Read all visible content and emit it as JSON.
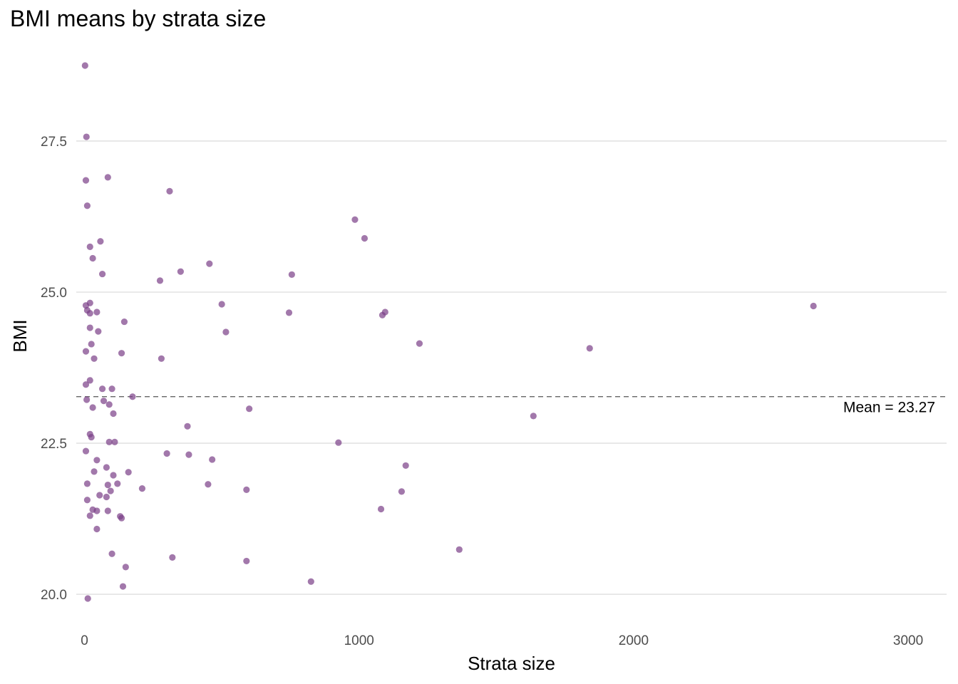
{
  "chart_data": {
    "type": "scatter",
    "title": "BMI means by strata size",
    "xlabel": "Strata size",
    "ylabel": "BMI",
    "xlim": [
      -30,
      3140
    ],
    "ylim": [
      19.6,
      28.95
    ],
    "xticks": [
      0,
      1000,
      2000,
      3000
    ],
    "xtick_labels": [
      "0",
      "1000",
      "2000",
      "3000"
    ],
    "yticks": [
      20.0,
      22.5,
      25.0,
      27.5
    ],
    "ytick_labels": [
      "20.0",
      "22.5",
      "25.0",
      "27.5"
    ],
    "grid": true,
    "point_color": "#7b3f87",
    "point_opacity": 0.7,
    "reference_line": {
      "y": 23.27,
      "style": "dashed",
      "color": "#666666",
      "label": "Mean = 23.27"
    },
    "points": [
      {
        "x": 2,
        "y": 28.75
      },
      {
        "x": 7,
        "y": 27.57
      },
      {
        "x": 5,
        "y": 26.85
      },
      {
        "x": 85,
        "y": 26.9
      },
      {
        "x": 310,
        "y": 26.67
      },
      {
        "x": 10,
        "y": 26.43
      },
      {
        "x": 985,
        "y": 26.2
      },
      {
        "x": 1020,
        "y": 25.89
      },
      {
        "x": 58,
        "y": 25.84
      },
      {
        "x": 20,
        "y": 25.75
      },
      {
        "x": 30,
        "y": 25.56
      },
      {
        "x": 455,
        "y": 25.47
      },
      {
        "x": 350,
        "y": 25.34
      },
      {
        "x": 65,
        "y": 25.3
      },
      {
        "x": 755,
        "y": 25.29
      },
      {
        "x": 275,
        "y": 25.19
      },
      {
        "x": 500,
        "y": 24.8
      },
      {
        "x": 20,
        "y": 24.82
      },
      {
        "x": 5,
        "y": 24.78
      },
      {
        "x": 10,
        "y": 24.7
      },
      {
        "x": 45,
        "y": 24.67
      },
      {
        "x": 20,
        "y": 24.65
      },
      {
        "x": 745,
        "y": 24.66
      },
      {
        "x": 1095,
        "y": 24.67
      },
      {
        "x": 1085,
        "y": 24.62
      },
      {
        "x": 2655,
        "y": 24.77
      },
      {
        "x": 145,
        "y": 24.51
      },
      {
        "x": 20,
        "y": 24.41
      },
      {
        "x": 50,
        "y": 24.35
      },
      {
        "x": 515,
        "y": 24.34
      },
      {
        "x": 1220,
        "y": 24.15
      },
      {
        "x": 25,
        "y": 24.14
      },
      {
        "x": 1840,
        "y": 24.07
      },
      {
        "x": 5,
        "y": 24.02
      },
      {
        "x": 135,
        "y": 23.99
      },
      {
        "x": 35,
        "y": 23.9
      },
      {
        "x": 280,
        "y": 23.9
      },
      {
        "x": 20,
        "y": 23.54
      },
      {
        "x": 5,
        "y": 23.47
      },
      {
        "x": 65,
        "y": 23.4
      },
      {
        "x": 100,
        "y": 23.4
      },
      {
        "x": 175,
        "y": 23.27
      },
      {
        "x": 8,
        "y": 23.22
      },
      {
        "x": 70,
        "y": 23.2
      },
      {
        "x": 90,
        "y": 23.14
      },
      {
        "x": 30,
        "y": 23.09
      },
      {
        "x": 600,
        "y": 23.07
      },
      {
        "x": 105,
        "y": 22.99
      },
      {
        "x": 1635,
        "y": 22.95
      },
      {
        "x": 375,
        "y": 22.78
      },
      {
        "x": 20,
        "y": 22.65
      },
      {
        "x": 25,
        "y": 22.6
      },
      {
        "x": 90,
        "y": 22.52
      },
      {
        "x": 110,
        "y": 22.52
      },
      {
        "x": 925,
        "y": 22.51
      },
      {
        "x": 5,
        "y": 22.37
      },
      {
        "x": 300,
        "y": 22.33
      },
      {
        "x": 380,
        "y": 22.31
      },
      {
        "x": 465,
        "y": 22.23
      },
      {
        "x": 45,
        "y": 22.22
      },
      {
        "x": 1170,
        "y": 22.13
      },
      {
        "x": 80,
        "y": 22.1
      },
      {
        "x": 35,
        "y": 22.03
      },
      {
        "x": 160,
        "y": 22.02
      },
      {
        "x": 105,
        "y": 21.97
      },
      {
        "x": 10,
        "y": 21.83
      },
      {
        "x": 120,
        "y": 21.83
      },
      {
        "x": 85,
        "y": 21.81
      },
      {
        "x": 450,
        "y": 21.82
      },
      {
        "x": 210,
        "y": 21.75
      },
      {
        "x": 590,
        "y": 21.73
      },
      {
        "x": 95,
        "y": 21.71
      },
      {
        "x": 1155,
        "y": 21.7
      },
      {
        "x": 55,
        "y": 21.64
      },
      {
        "x": 80,
        "y": 21.61
      },
      {
        "x": 10,
        "y": 21.56
      },
      {
        "x": 1080,
        "y": 21.41
      },
      {
        "x": 30,
        "y": 21.4
      },
      {
        "x": 45,
        "y": 21.38
      },
      {
        "x": 85,
        "y": 21.38
      },
      {
        "x": 20,
        "y": 21.3
      },
      {
        "x": 130,
        "y": 21.29
      },
      {
        "x": 135,
        "y": 21.26
      },
      {
        "x": 45,
        "y": 21.08
      },
      {
        "x": 1365,
        "y": 20.74
      },
      {
        "x": 100,
        "y": 20.67
      },
      {
        "x": 320,
        "y": 20.61
      },
      {
        "x": 590,
        "y": 20.55
      },
      {
        "x": 150,
        "y": 20.45
      },
      {
        "x": 825,
        "y": 20.21
      },
      {
        "x": 140,
        "y": 20.13
      },
      {
        "x": 12,
        "y": 19.93
      }
    ]
  }
}
